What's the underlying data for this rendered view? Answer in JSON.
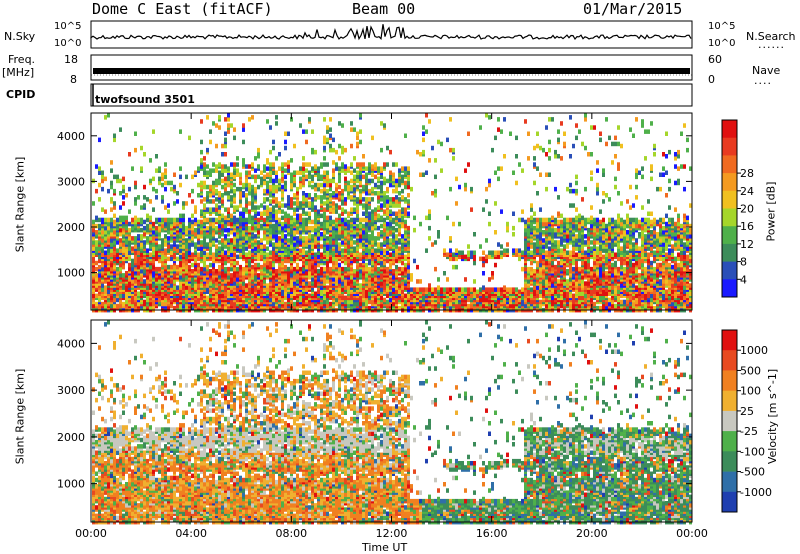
{
  "header": {
    "station": "Dome C East (fitACF)",
    "beam": "Beam 00",
    "date": "01/Mar/2015"
  },
  "panels": {
    "nsky": {
      "label": "N.Sky",
      "left_ticks": [
        "10^5",
        "10^0"
      ],
      "right_ticks": [
        "10^5",
        "10^0"
      ],
      "right_label": "N.Search",
      "right_dots": "......"
    },
    "freq": {
      "label": "Freq.",
      "unit": "[MHz]",
      "left_ticks": [
        "18",
        "8"
      ],
      "right_ticks": [
        "60",
        "0"
      ],
      "right_label": "Nave",
      "right_dots": "...."
    },
    "cpid": {
      "label": "CPID",
      "value": "twofsound 3501"
    }
  },
  "chart_data": [
    {
      "type": "heatmap",
      "title": "",
      "ylabel": "Slant Range [km]",
      "xlabel": "",
      "yticks": [
        1000,
        2000,
        3000,
        4000
      ],
      "ylim": [
        180,
        4500
      ],
      "colorbar": {
        "label": "Power [dB]",
        "ticks": [
          4,
          8,
          12,
          16,
          20,
          24,
          28
        ],
        "colors": [
          "#1a1aff",
          "#2a4fb8",
          "#3c8c5a",
          "#4fb04a",
          "#a5d62a",
          "#f0c020",
          "#f49a20",
          "#f06a20",
          "#e83a20",
          "#e01010"
        ]
      }
    },
    {
      "type": "heatmap",
      "title": "",
      "ylabel": "Slant Range [km]",
      "xlabel": "Time UT",
      "yticks": [
        1000,
        2000,
        3000,
        4000
      ],
      "ylim": [
        180,
        4500
      ],
      "xticks": [
        "00:00",
        "04:00",
        "08:00",
        "12:00",
        "16:00",
        "20:00",
        "00:00"
      ],
      "colorbar": {
        "label": "Velocity [m s^-1]",
        "ticks": [
          "1000",
          "500",
          "100",
          "25",
          "-25",
          "-100",
          "-500",
          "-1000"
        ],
        "colors": [
          "#1f3fb0",
          "#2f6fa8",
          "#3c8c5a",
          "#4fb04a",
          "#c8c8c0",
          "#f0b030",
          "#f08020",
          "#e84a20",
          "#e01010"
        ]
      }
    }
  ]
}
